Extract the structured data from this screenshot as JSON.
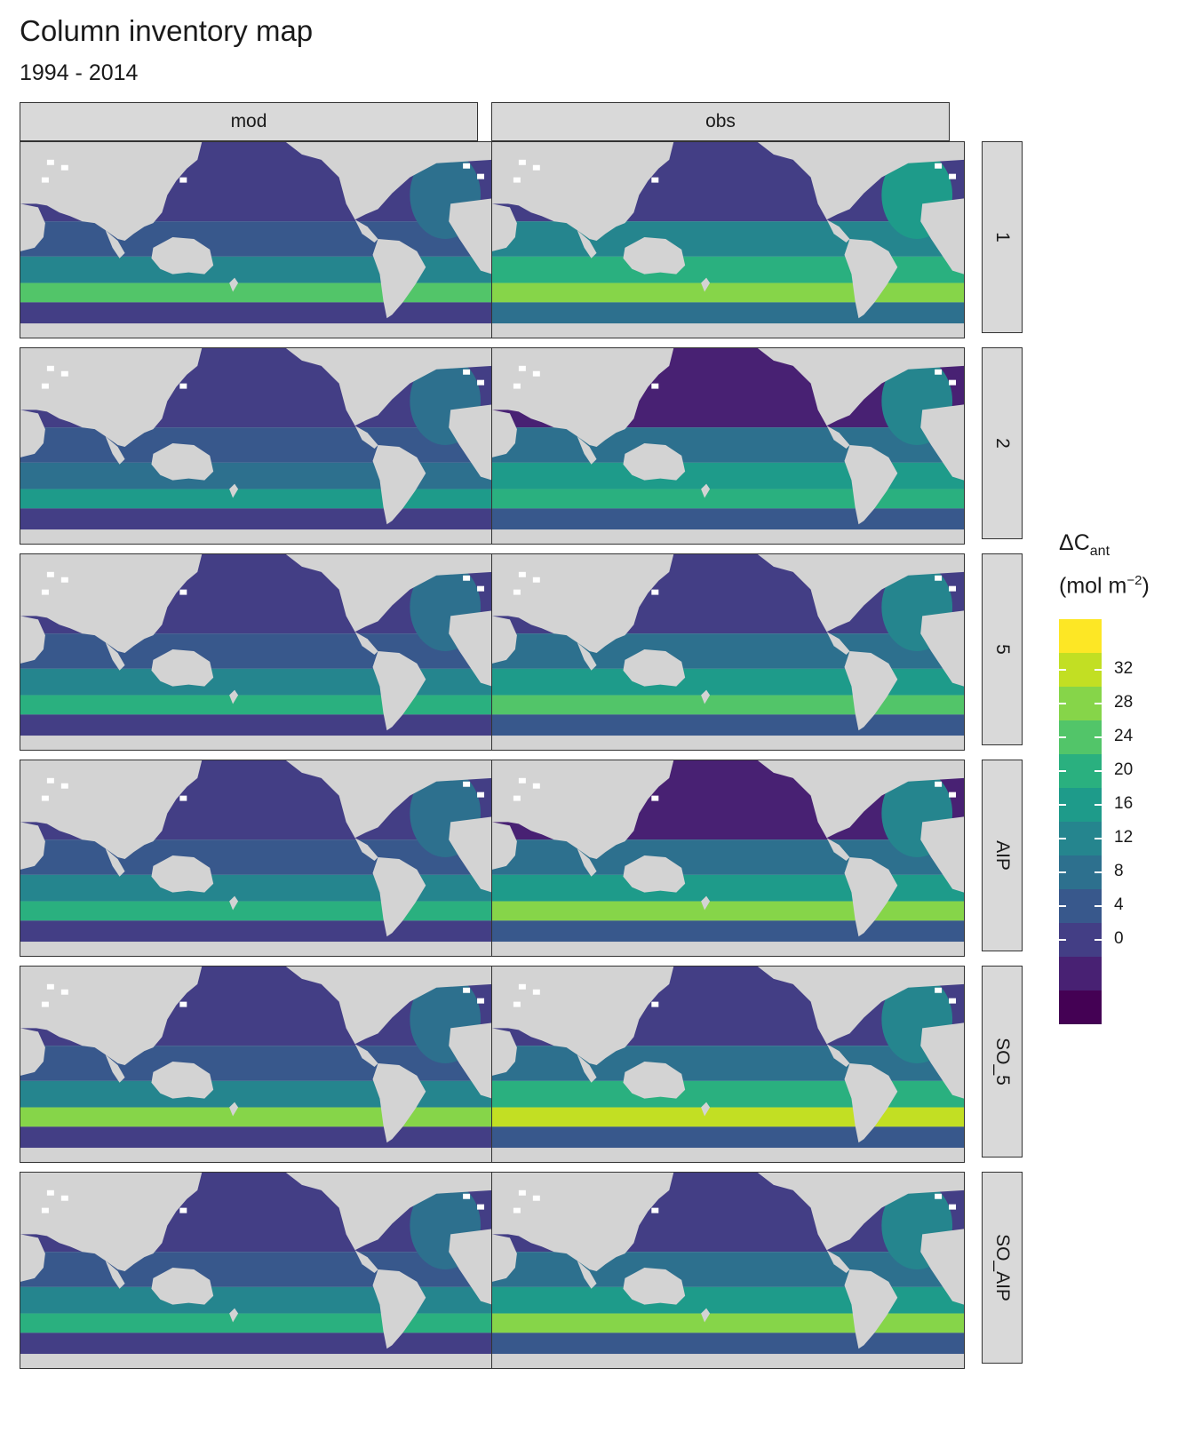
{
  "title": "Column inventory map",
  "subtitle": "1994 - 2014",
  "columns": [
    "mod",
    "obs"
  ],
  "rows": [
    "1",
    "2",
    "5",
    "AIP",
    "SO_5",
    "SO_AIP"
  ],
  "legend": {
    "title_symbol": "ΔC",
    "title_sub": "ant",
    "unit_prefix": "(mol m",
    "unit_sup": "−2",
    "unit_suffix": ")",
    "ticks": [
      "32",
      "28",
      "24",
      "20",
      "16",
      "12",
      "8",
      "4",
      "0"
    ],
    "colors": [
      "#fde725",
      "#c2df23",
      "#86d549",
      "#52c569",
      "#2ab07f",
      "#1e9b8a",
      "#25858e",
      "#2d708e",
      "#38588c",
      "#433e85",
      "#482173",
      "#440154"
    ]
  },
  "colors": {
    "land": "#d3d3d3",
    "coast_white": "#ffffff"
  },
  "chart_data": {
    "type": "heatmap",
    "title": "Column inventory map",
    "subtitle": "1994 - 2014",
    "facet_columns": [
      "mod",
      "obs"
    ],
    "facet_rows": [
      "1",
      "2",
      "5",
      "AIP",
      "SO_5",
      "SO_AIP"
    ],
    "variable": "ΔCant",
    "unit": "mol m−2",
    "color_scale": "viridis",
    "breaks": [
      0,
      4,
      8,
      12,
      16,
      20,
      24,
      28,
      32
    ]
  }
}
